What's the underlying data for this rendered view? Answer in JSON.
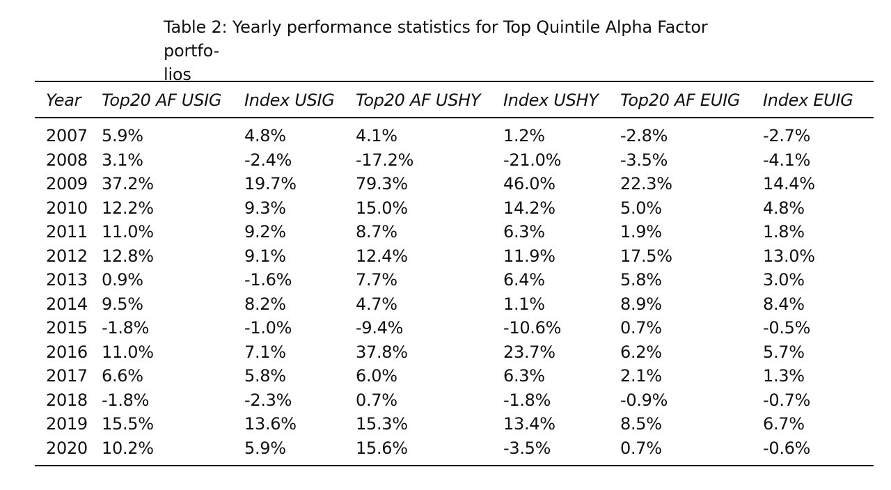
{
  "caption": {
    "line1": "Table 2:  Yearly performance statistics for Top Quintile Alpha Factor portfo-",
    "line2": "lios"
  },
  "table": {
    "headers": [
      "Year",
      "Top20 AF USIG",
      "Index USIG",
      "Top20 AF USHY",
      "Index USHY",
      "Top20 AF EUIG",
      "Index EUIG"
    ],
    "rows": [
      [
        "2007",
        "5.9%",
        "4.8%",
        "4.1%",
        "1.2%",
        "-2.8%",
        "-2.7%"
      ],
      [
        "2008",
        "3.1%",
        "-2.4%",
        "-17.2%",
        "-21.0%",
        "-3.5%",
        "-4.1%"
      ],
      [
        "2009",
        "37.2%",
        "19.7%",
        "79.3%",
        "46.0%",
        "22.3%",
        "14.4%"
      ],
      [
        "2010",
        "12.2%",
        "9.3%",
        "15.0%",
        "14.2%",
        "5.0%",
        "4.8%"
      ],
      [
        "2011",
        "11.0%",
        "9.2%",
        "8.7%",
        "6.3%",
        "1.9%",
        "1.8%"
      ],
      [
        "2012",
        "12.8%",
        "9.1%",
        "12.4%",
        "11.9%",
        "17.5%",
        "13.0%"
      ],
      [
        "2013",
        "0.9%",
        "-1.6%",
        "7.7%",
        "6.4%",
        "5.8%",
        "3.0%"
      ],
      [
        "2014",
        "9.5%",
        "8.2%",
        "4.7%",
        "1.1%",
        "8.9%",
        "8.4%"
      ],
      [
        "2015",
        "-1.8%",
        "-1.0%",
        "-9.4%",
        "-10.6%",
        "0.7%",
        "-0.5%"
      ],
      [
        "2016",
        "11.0%",
        "7.1%",
        "37.8%",
        "23.7%",
        "6.2%",
        "5.7%"
      ],
      [
        "2017",
        "6.6%",
        "5.8%",
        "6.0%",
        "6.3%",
        "2.1%",
        "1.3%"
      ],
      [
        "2018",
        "-1.8%",
        "-2.3%",
        "0.7%",
        "-1.8%",
        "-0.9%",
        "-0.7%"
      ],
      [
        "2019",
        "15.5%",
        "13.6%",
        "15.3%",
        "13.4%",
        "8.5%",
        "6.7%"
      ],
      [
        "2020",
        "10.2%",
        "5.9%",
        "15.6%",
        "-3.5%",
        "0.7%",
        "-0.6%"
      ]
    ]
  }
}
